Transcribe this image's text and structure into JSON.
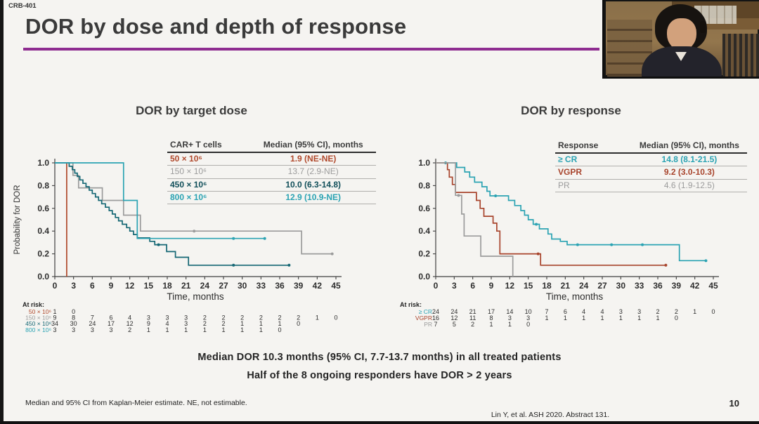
{
  "slide": {
    "code": "CRB-401",
    "title": "DOR by dose and depth of response",
    "accent_color": "#8e2c90",
    "summary_line1": "Median DOR 10.3 months (95% CI, 7.7-13.7 months) in all treated patients",
    "summary_line2": "Half of the 8 ongoing responders have DOR > 2 years",
    "footnote": "Median and 95% CI from Kaplan-Meier estimate. NE, not estimable.",
    "citation": "Lin Y, et al. ASH 2020. Abstract 131.",
    "page_number": "10"
  },
  "webcam": {
    "description": "presenter video thumbnail"
  },
  "chart_data": [
    {
      "type": "line",
      "subtype": "kaplan-meier",
      "title": "DOR by target dose",
      "xlabel": "Time, months",
      "ylabel": "Probability for DOR",
      "xlim": [
        0,
        45
      ],
      "ylim": [
        0,
        1.0
      ],
      "xticks": [
        0,
        3,
        6,
        9,
        12,
        15,
        18,
        21,
        24,
        27,
        30,
        33,
        36,
        39,
        42,
        45
      ],
      "yticks": [
        0.0,
        0.2,
        0.4,
        0.6,
        0.8,
        1.0
      ],
      "grid": false,
      "table": {
        "headers": [
          "CAR+ T cells",
          "Median (95% CI), months"
        ],
        "rows": [
          {
            "label": "50 × 10⁶",
            "value": "1.9 (NE-NE)",
            "color": "#b0492c",
            "weight": 600
          },
          {
            "label": "150 × 10⁶",
            "value": "13.7 (2.9-NE)",
            "color": "#9c9c9c",
            "weight": 400
          },
          {
            "label": "450 × 10⁶",
            "value": "10.0 (6.3-14.8)",
            "color": "#114f5a",
            "weight": 700
          },
          {
            "label": "800 × 10⁶",
            "value": "12.9 (10.9-NE)",
            "color": "#2ba3b3",
            "weight": 600
          }
        ]
      },
      "series": [
        {
          "name": "50 × 10⁶",
          "color": "#b0492c",
          "points": [
            [
              0,
              1
            ],
            [
              1.9,
              1
            ],
            [
              1.9,
              0
            ]
          ],
          "censors": []
        },
        {
          "name": "150 × 10⁶",
          "color": "#9c9c9c",
          "points": [
            [
              0,
              1
            ],
            [
              2.9,
              1
            ],
            [
              2.9,
              0.89
            ],
            [
              3.8,
              0.89
            ],
            [
              3.8,
              0.78
            ],
            [
              7.6,
              0.78
            ],
            [
              7.6,
              0.67
            ],
            [
              11,
              0.67
            ],
            [
              11,
              0.54
            ],
            [
              13.7,
              0.54
            ],
            [
              13.7,
              0.4
            ],
            [
              39.5,
              0.4
            ],
            [
              39.5,
              0.2
            ],
            [
              44.4,
              0.2
            ]
          ],
          "censors": [
            [
              22.3,
              0.4
            ],
            [
              44.4,
              0.2
            ]
          ]
        },
        {
          "name": "450 × 10⁶",
          "color": "#156774",
          "points": [
            [
              0,
              1
            ],
            [
              2.3,
              1
            ],
            [
              2.3,
              0.97
            ],
            [
              2.8,
              0.97
            ],
            [
              2.8,
              0.94
            ],
            [
              3.2,
              0.94
            ],
            [
              3.2,
              0.91
            ],
            [
              3.6,
              0.91
            ],
            [
              3.6,
              0.88
            ],
            [
              4.0,
              0.88
            ],
            [
              4.0,
              0.85
            ],
            [
              4.5,
              0.85
            ],
            [
              4.5,
              0.82
            ],
            [
              5.0,
              0.82
            ],
            [
              5.0,
              0.79
            ],
            [
              5.5,
              0.79
            ],
            [
              5.5,
              0.76
            ],
            [
              6.0,
              0.76
            ],
            [
              6.0,
              0.73
            ],
            [
              6.5,
              0.73
            ],
            [
              6.5,
              0.7
            ],
            [
              7.0,
              0.7
            ],
            [
              7.0,
              0.67
            ],
            [
              7.5,
              0.67
            ],
            [
              7.5,
              0.64
            ],
            [
              8.1,
              0.64
            ],
            [
              8.1,
              0.61
            ],
            [
              8.7,
              0.61
            ],
            [
              8.7,
              0.58
            ],
            [
              9.2,
              0.58
            ],
            [
              9.2,
              0.55
            ],
            [
              9.7,
              0.55
            ],
            [
              9.7,
              0.52
            ],
            [
              10.2,
              0.52
            ],
            [
              10.2,
              0.49
            ],
            [
              10.8,
              0.49
            ],
            [
              10.8,
              0.46
            ],
            [
              11.5,
              0.46
            ],
            [
              11.5,
              0.43
            ],
            [
              12.0,
              0.43
            ],
            [
              12.0,
              0.4
            ],
            [
              12.6,
              0.4
            ],
            [
              12.6,
              0.37
            ],
            [
              13.2,
              0.37
            ],
            [
              13.2,
              0.34
            ],
            [
              15.2,
              0.34
            ],
            [
              15.2,
              0.31
            ],
            [
              16.0,
              0.31
            ],
            [
              16.0,
              0.28
            ],
            [
              17.9,
              0.28
            ],
            [
              17.9,
              0.22
            ],
            [
              19.3,
              0.22
            ],
            [
              19.3,
              0.17
            ],
            [
              21.4,
              0.17
            ],
            [
              21.4,
              0.1
            ],
            [
              37.5,
              0.1
            ]
          ],
          "censors": [
            [
              16.6,
              0.28
            ],
            [
              28.6,
              0.1
            ],
            [
              37.5,
              0.1
            ]
          ]
        },
        {
          "name": "800 × 10⁶",
          "color": "#2ba3b3",
          "points": [
            [
              0,
              1
            ],
            [
              11,
              1
            ],
            [
              11,
              0.67
            ],
            [
              13.2,
              0.67
            ],
            [
              13.2,
              0.335
            ],
            [
              33.6,
              0.335
            ]
          ],
          "censors": [
            [
              28.6,
              0.335
            ],
            [
              33.6,
              0.335
            ]
          ]
        }
      ],
      "at_risk": {
        "label": "At risk:",
        "times": [
          0,
          3,
          6,
          9,
          12,
          15,
          18,
          21,
          24,
          27,
          30,
          33,
          36,
          39,
          42,
          45
        ],
        "rows": [
          {
            "name": "50 × 10⁶",
            "color": "#b0492c",
            "values": [
              1,
              0
            ]
          },
          {
            "name": "150 × 10⁶",
            "color": "#9c9c9c",
            "values": [
              9,
              8,
              7,
              6,
              4,
              3,
              3,
              3,
              2,
              2,
              2,
              2,
              2,
              2,
              1,
              0
            ]
          },
          {
            "name": "450 × 10⁶",
            "color": "#156774",
            "values": [
              34,
              30,
              24,
              17,
              12,
              9,
              4,
              3,
              2,
              2,
              1,
              1,
              1,
              0
            ]
          },
          {
            "name": "800 × 10⁶",
            "color": "#2ba3b3",
            "values": [
              3,
              3,
              3,
              3,
              2,
              1,
              1,
              1,
              1,
              1,
              1,
              1,
              0
            ]
          }
        ]
      }
    },
    {
      "type": "line",
      "subtype": "kaplan-meier",
      "title": "DOR by response",
      "xlabel": "Time, months",
      "ylabel": "",
      "xlim": [
        0,
        45
      ],
      "ylim": [
        0,
        1.0
      ],
      "xticks": [
        0,
        3,
        6,
        9,
        12,
        15,
        18,
        21,
        24,
        27,
        30,
        33,
        36,
        39,
        42,
        45
      ],
      "yticks": [
        0.0,
        0.2,
        0.4,
        0.6,
        0.8,
        1.0
      ],
      "grid": false,
      "table": {
        "headers": [
          "Response",
          "Median (95% CI), months"
        ],
        "rows": [
          {
            "label": "≥ CR",
            "value": "14.8 (8.1-21.5)",
            "color": "#2ba3b3",
            "weight": 600
          },
          {
            "label": "VGPR",
            "value": "9.2 (3.0-10.3)",
            "color": "#a8442c",
            "weight": 700
          },
          {
            "label": "PR",
            "value": "4.6 (1.9-12.5)",
            "color": "#9c9c9c",
            "weight": 400
          }
        ]
      },
      "series": [
        {
          "name": "≥ CR",
          "color": "#2ba3b3",
          "points": [
            [
              0,
              1
            ],
            [
              3.4,
              1
            ],
            [
              3.4,
              0.96
            ],
            [
              4.7,
              0.96
            ],
            [
              4.7,
              0.92
            ],
            [
              5.5,
              0.92
            ],
            [
              5.5,
              0.875
            ],
            [
              6.3,
              0.875
            ],
            [
              6.3,
              0.83
            ],
            [
              7.5,
              0.83
            ],
            [
              7.5,
              0.79
            ],
            [
              8.3,
              0.79
            ],
            [
              8.3,
              0.75
            ],
            [
              8.8,
              0.75
            ],
            [
              8.8,
              0.71
            ],
            [
              11.8,
              0.71
            ],
            [
              11.8,
              0.67
            ],
            [
              12.8,
              0.67
            ],
            [
              12.8,
              0.625
            ],
            [
              13.8,
              0.625
            ],
            [
              13.8,
              0.58
            ],
            [
              14.4,
              0.58
            ],
            [
              14.4,
              0.54
            ],
            [
              15.0,
              0.54
            ],
            [
              15.0,
              0.5
            ],
            [
              15.8,
              0.5
            ],
            [
              15.8,
              0.46
            ],
            [
              16.8,
              0.46
            ],
            [
              16.8,
              0.42
            ],
            [
              18.2,
              0.42
            ],
            [
              18.2,
              0.375
            ],
            [
              18.8,
              0.375
            ],
            [
              18.8,
              0.33
            ],
            [
              20.2,
              0.33
            ],
            [
              20.2,
              0.31
            ],
            [
              21.3,
              0.31
            ],
            [
              21.3,
              0.28
            ],
            [
              39.5,
              0.28
            ],
            [
              39.5,
              0.14
            ],
            [
              43.8,
              0.14
            ]
          ],
          "censors": [
            [
              1.6,
              1.0
            ],
            [
              9.7,
              0.71
            ],
            [
              16.3,
              0.46
            ],
            [
              23,
              0.28
            ],
            [
              28.5,
              0.28
            ],
            [
              33.5,
              0.28
            ],
            [
              43.8,
              0.14
            ]
          ]
        },
        {
          "name": "VGPR",
          "color": "#a8442c",
          "points": [
            [
              0,
              1
            ],
            [
              1.9,
              1
            ],
            [
              1.9,
              0.94
            ],
            [
              2.2,
              0.94
            ],
            [
              2.2,
              0.875
            ],
            [
              2.7,
              0.875
            ],
            [
              2.7,
              0.81
            ],
            [
              3.2,
              0.81
            ],
            [
              3.2,
              0.74
            ],
            [
              6.6,
              0.74
            ],
            [
              6.6,
              0.67
            ],
            [
              7.2,
              0.67
            ],
            [
              7.2,
              0.6
            ],
            [
              7.8,
              0.6
            ],
            [
              7.8,
              0.53
            ],
            [
              9.3,
              0.53
            ],
            [
              9.3,
              0.47
            ],
            [
              9.9,
              0.47
            ],
            [
              9.9,
              0.4
            ],
            [
              10.4,
              0.4
            ],
            [
              10.4,
              0.2
            ],
            [
              17.0,
              0.2
            ],
            [
              17.0,
              0.1
            ],
            [
              37.3,
              0.1
            ]
          ],
          "censors": [
            [
              16.6,
              0.2
            ],
            [
              37.3,
              0.1
            ]
          ]
        },
        {
          "name": "PR",
          "color": "#9c9c9c",
          "points": [
            [
              0,
              1
            ],
            [
              3.2,
              1
            ],
            [
              3.2,
              0.714
            ],
            [
              4.2,
              0.714
            ],
            [
              4.2,
              0.55
            ],
            [
              4.6,
              0.55
            ],
            [
              4.6,
              0.357
            ],
            [
              7.3,
              0.357
            ],
            [
              7.3,
              0.179
            ],
            [
              12.5,
              0.179
            ],
            [
              12.5,
              0
            ]
          ],
          "censors": [
            [
              3.7,
              0.714
            ]
          ]
        }
      ],
      "at_risk": {
        "label": "At risk:",
        "times": [
          0,
          3,
          6,
          9,
          12,
          15,
          18,
          21,
          24,
          27,
          30,
          33,
          36,
          39,
          42,
          45
        ],
        "rows": [
          {
            "name": "≥ CR",
            "color": "#2ba3b3",
            "values": [
              24,
              24,
              21,
              17,
              14,
              10,
              7,
              6,
              4,
              4,
              3,
              3,
              2,
              2,
              1,
              0
            ]
          },
          {
            "name": "VGPR",
            "color": "#a8442c",
            "values": [
              16,
              12,
              11,
              8,
              3,
              3,
              1,
              1,
              1,
              1,
              1,
              1,
              1,
              0
            ]
          },
          {
            "name": "PR",
            "color": "#9c9c9c",
            "values": [
              7,
              5,
              2,
              1,
              1,
              0
            ]
          }
        ]
      }
    }
  ]
}
